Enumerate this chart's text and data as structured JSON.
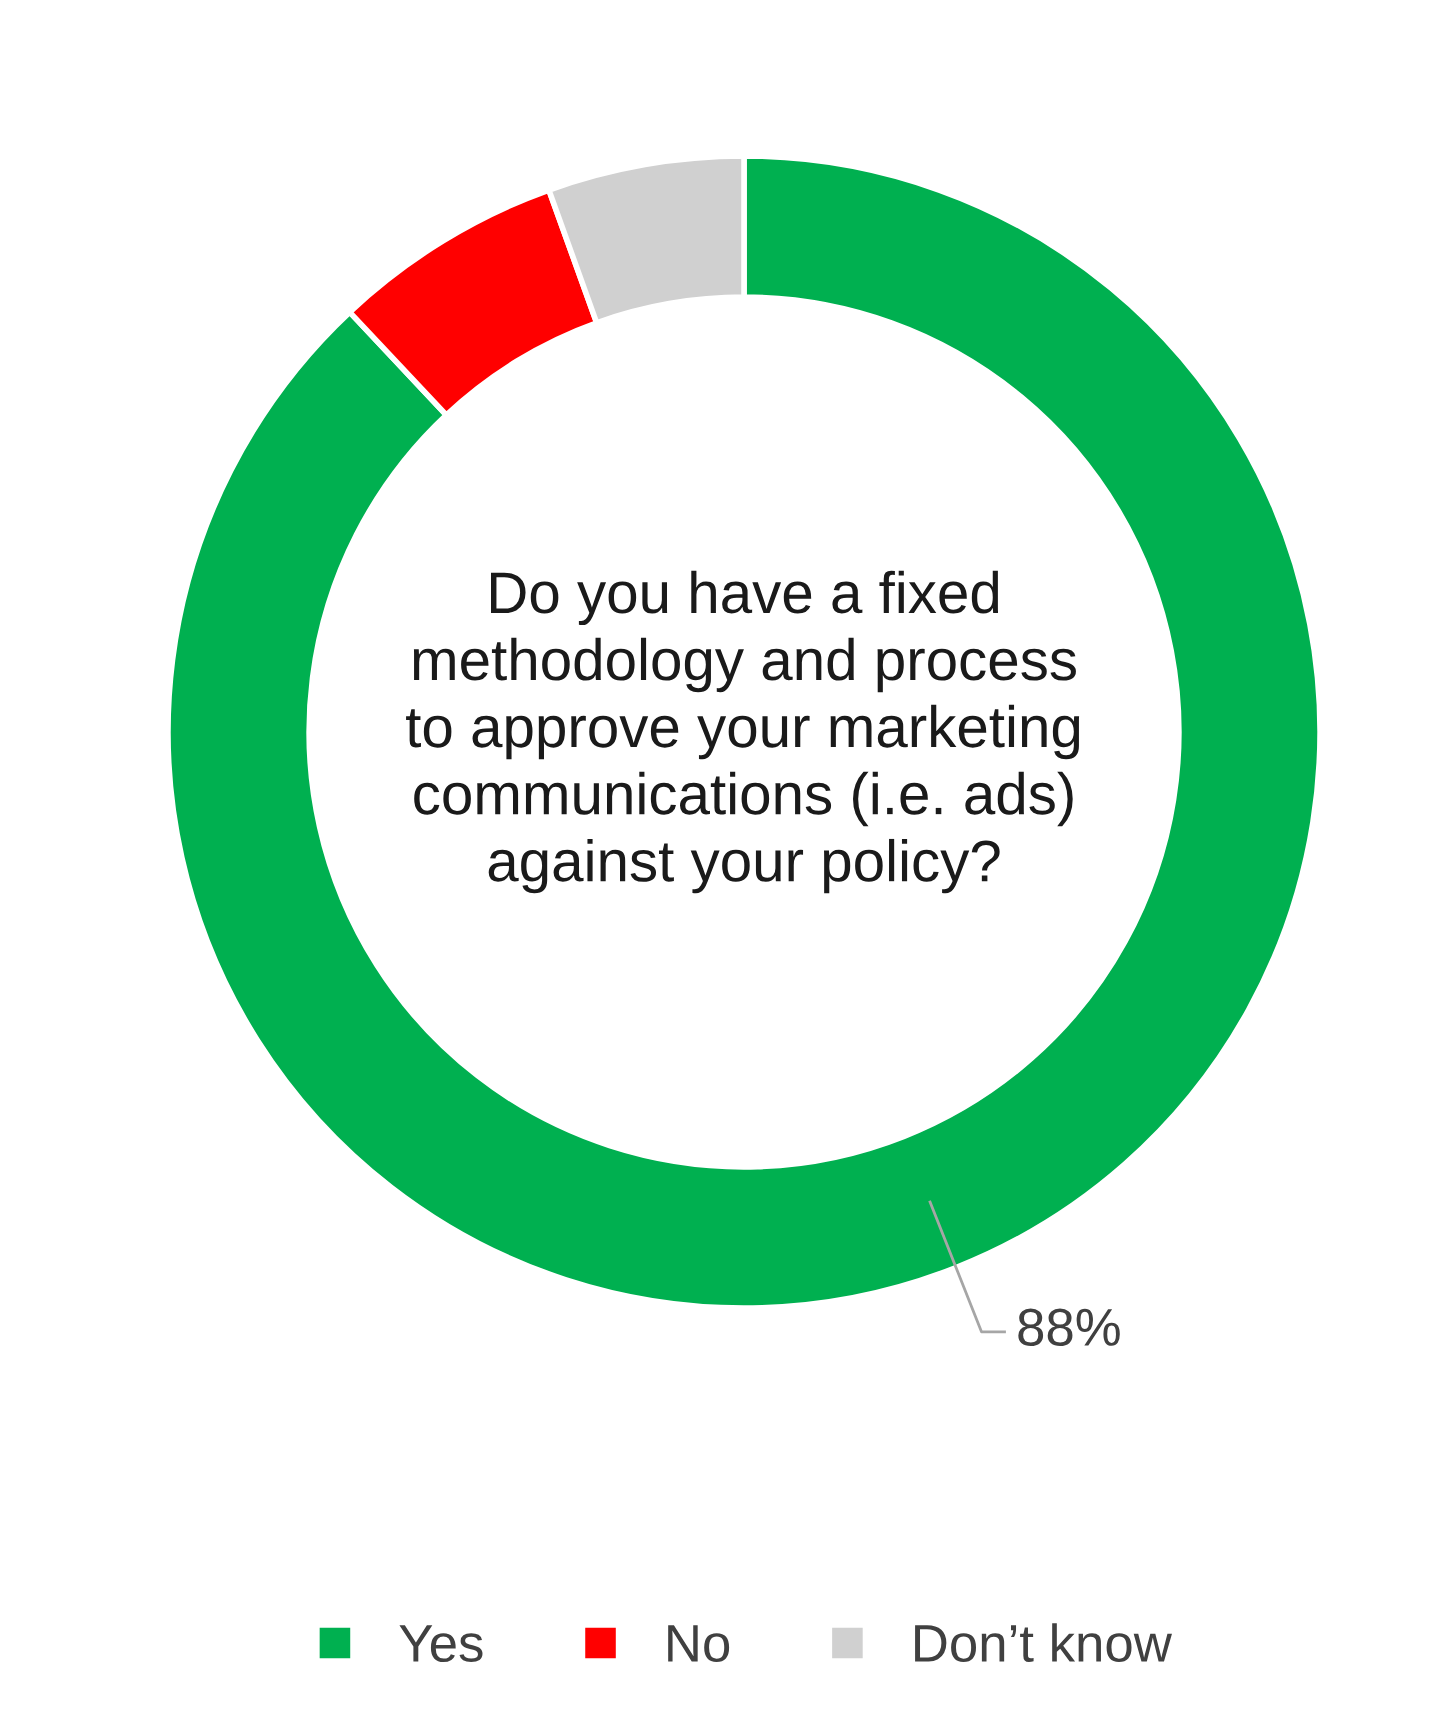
{
  "chart_data": {
    "type": "donut",
    "title": "Do you have a fixed methodology and process to approve your marketing communications (i.e. ads) against your policy?",
    "categories": [
      "Yes",
      "No",
      "Don’t know"
    ],
    "values": [
      88,
      6.5,
      5.5
    ],
    "colors": [
      "#00b050",
      "#ff0000",
      "#d0d0d0"
    ],
    "value_labels": [
      "88%",
      null,
      null
    ],
    "legend": "bottom"
  }
}
